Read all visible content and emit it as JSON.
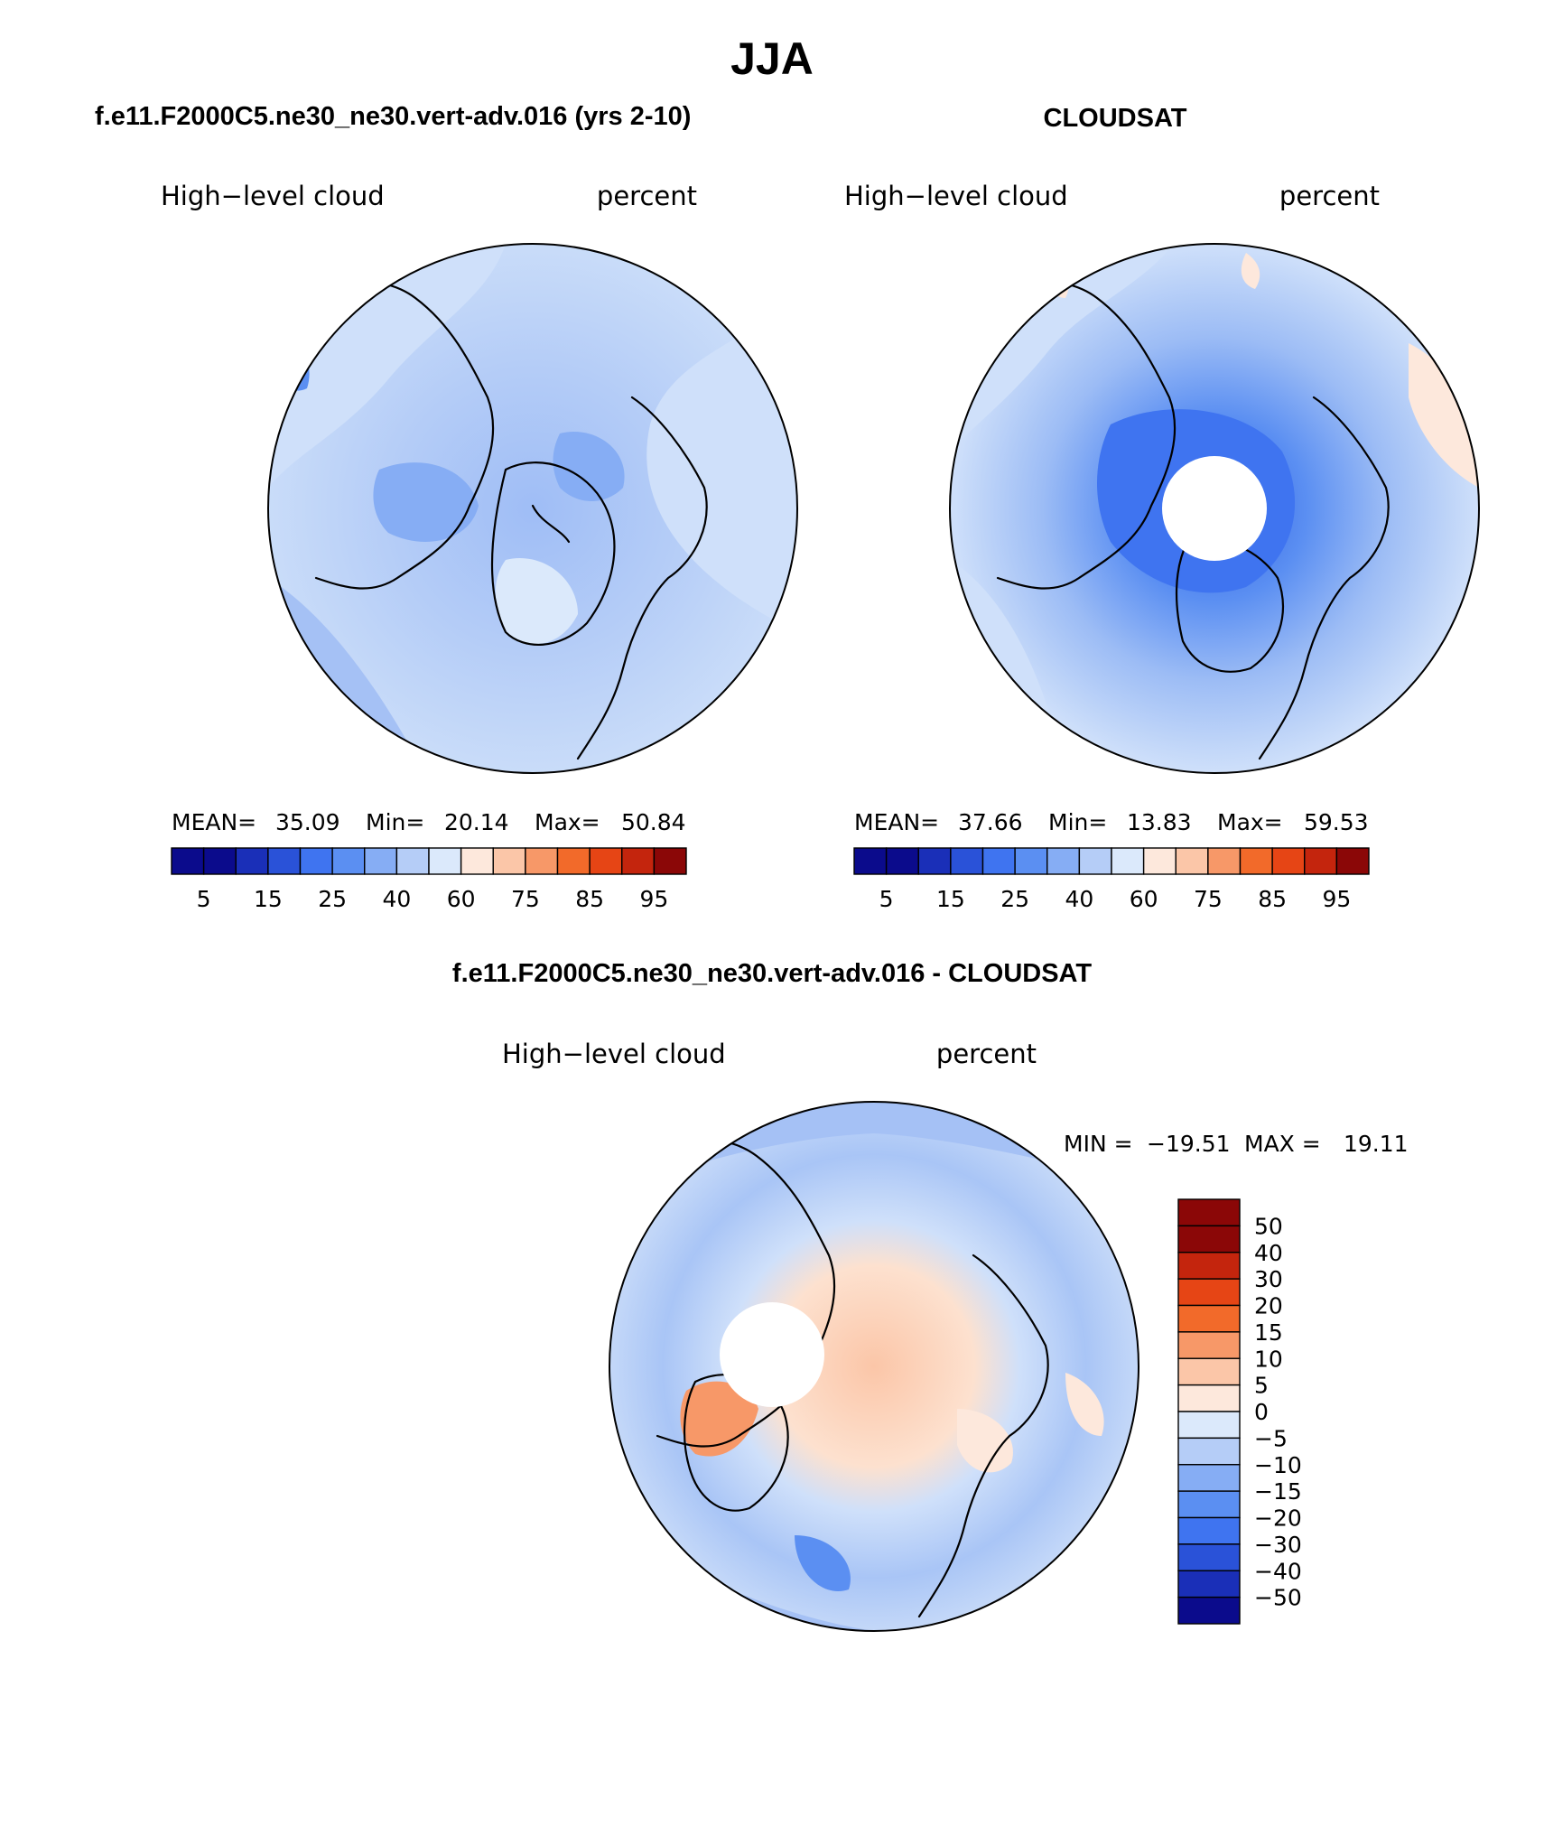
{
  "page_title": "JJA",
  "colors": {
    "diverging_13": [
      "#0b0b8c",
      "#1a2fb8",
      "#2a52d8",
      "#3f74f0",
      "#5b8ff2",
      "#86adf4",
      "#b5cdf7",
      "#dbe9fb",
      "#fde8dc",
      "#fbc6a8",
      "#f79868",
      "#f26a2a",
      "#e64515",
      "#c4250d",
      "#8b0707"
    ],
    "hole": "#ffffff",
    "coast": "#000000"
  },
  "panels": [
    {
      "title": "f.e11.F2000C5.ne30_ne30.vert-adv.016 (yrs 2-10)",
      "left_label": "High−level cloud",
      "right_label": "percent",
      "stats": {
        "mean_label": "MEAN=",
        "mean": "35.09",
        "min_label": "Min=",
        "min": "20.14",
        "max_label": "Max=",
        "max": "50.84"
      },
      "has_pole_hole": false,
      "dominant": "light blue (25–40%)"
    },
    {
      "title": "CLOUDSAT",
      "left_label": "High−level cloud",
      "right_label": "percent",
      "stats": {
        "mean_label": "MEAN=",
        "mean": "37.66",
        "min_label": "Min=",
        "min": "13.83",
        "max_label": "Max=",
        "max": "59.53"
      },
      "has_pole_hole": true,
      "dominant": "light blue with darker blue near pole"
    },
    {
      "title": "f.e11.F2000C5.ne30_ne30.vert-adv.016 - CLOUDSAT",
      "left_label": "High−level cloud",
      "right_label": "percent",
      "stats": {
        "min_label": "MIN =",
        "min": "−19.51",
        "max_label": "MAX =",
        "max": "19.11"
      },
      "has_pole_hole": true,
      "dominant": "blue mid-latitudes, orange over Arctic"
    }
  ],
  "colorbar_top": {
    "tick_labels": [
      "5",
      "15",
      "25",
      "40",
      "60",
      "75",
      "85",
      "95"
    ]
  },
  "colorbar_diff": {
    "tick_labels": [
      "50",
      "40",
      "30",
      "20",
      "15",
      "10",
      "5",
      "0",
      "−5",
      "−10",
      "−15",
      "−20",
      "−30",
      "−40",
      "−50"
    ]
  }
}
